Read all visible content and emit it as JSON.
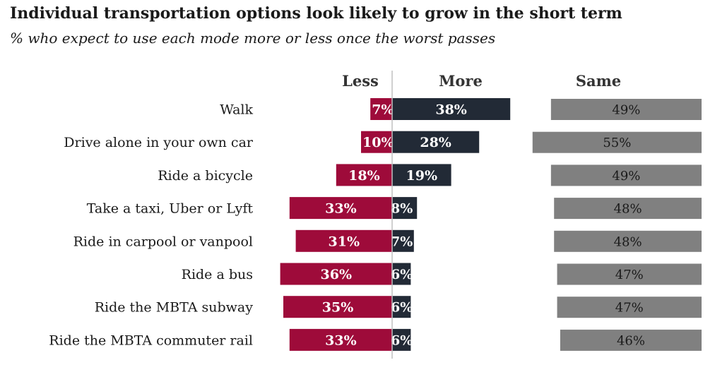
{
  "title": "Individual transportation options look likely to grow in the short term",
  "subtitle": "% who expect to use each mode more or less once the worst passes",
  "colors": {
    "less": "#9e0b3a",
    "more": "#222a36",
    "same": "#808080",
    "axis": "#c0c0c0"
  },
  "chart_data": {
    "type": "bar",
    "headers": {
      "less": "Less",
      "more": "More",
      "same": "Same"
    },
    "categories": [
      "Walk",
      "Drive alone in your own car",
      "Ride a bicycle",
      "Take a taxi, Uber or Lyft",
      "Ride in carpool or vanpool",
      "Ride a bus",
      "Ride the MBTA subway",
      "Ride the MBTA commuter rail"
    ],
    "series": [
      {
        "name": "Less",
        "values": [
          7,
          10,
          18,
          33,
          31,
          36,
          35,
          33
        ],
        "labels": [
          "7%",
          "10%",
          "18%",
          "33%",
          "31%",
          "36%",
          "35%",
          "33%"
        ]
      },
      {
        "name": "More",
        "values": [
          38,
          28,
          19,
          8,
          7,
          6,
          6,
          6
        ],
        "labels": [
          "38%",
          "28%",
          "19%",
          "8%",
          "7%",
          "6%",
          "6%",
          "6%"
        ]
      },
      {
        "name": "Same",
        "values": [
          49,
          55,
          49,
          48,
          48,
          47,
          47,
          46
        ],
        "labels": [
          "49%",
          "55%",
          "49%",
          "48%",
          "48%",
          "47%",
          "47%",
          "46%"
        ]
      }
    ]
  }
}
